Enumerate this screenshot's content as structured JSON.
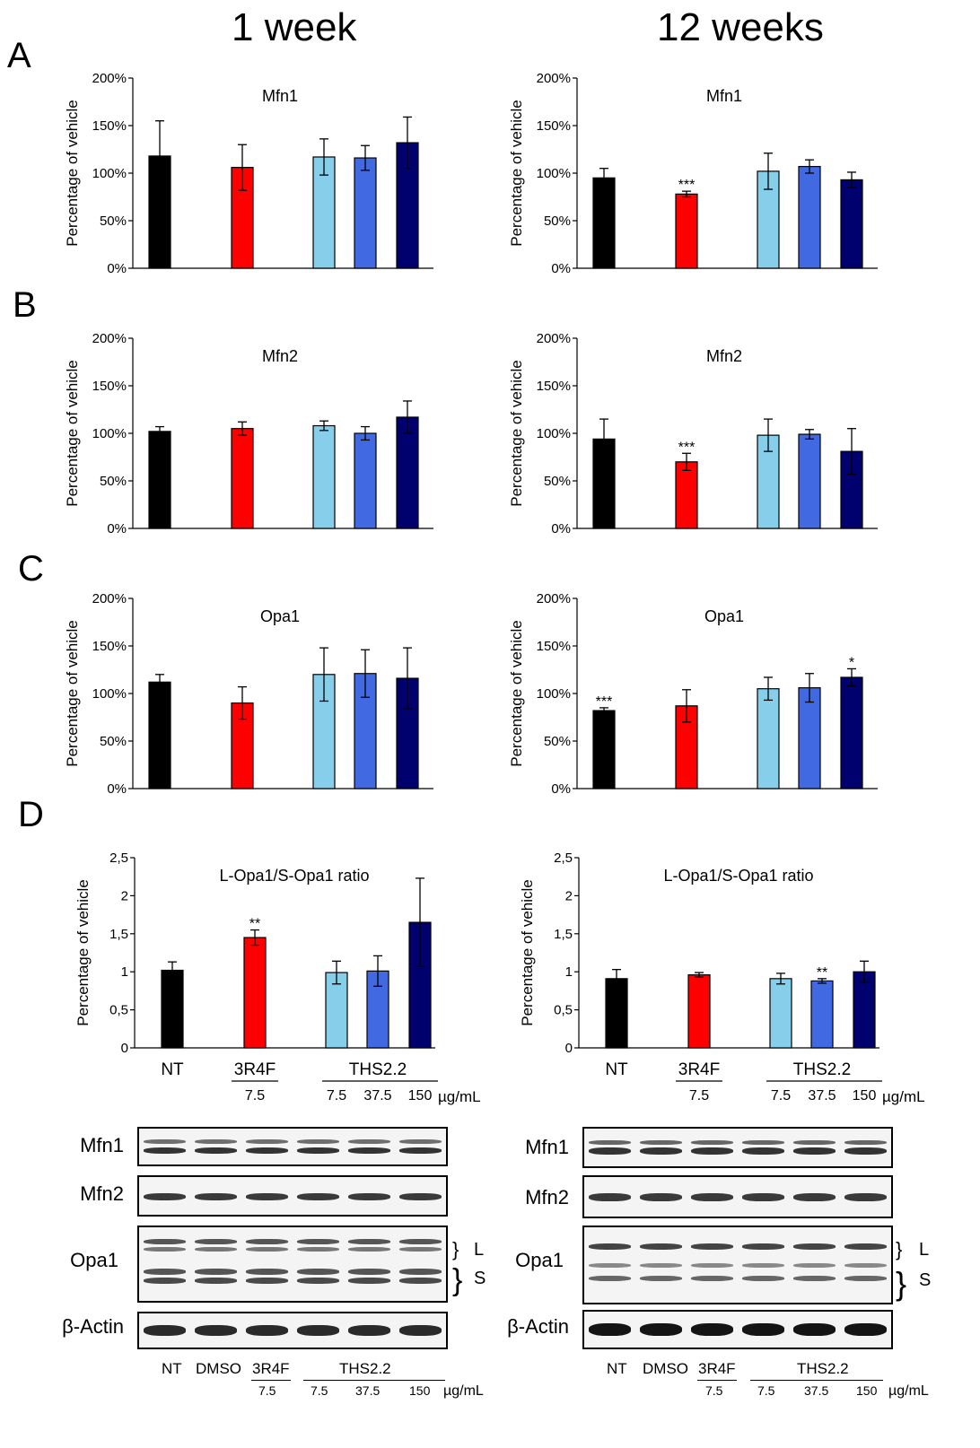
{
  "column_titles": [
    "1 week",
    "12 weeks"
  ],
  "panel_letters": [
    "A",
    "B",
    "C",
    "D"
  ],
  "colors": {
    "NT": "#000000",
    "3R4F": "#ff0000",
    "THS7.5": "#87ceeb",
    "THS37.5": "#4169e1",
    "THS150": "#00006e"
  },
  "x_groups": {
    "nt": "NT",
    "ref": "3R4F",
    "ref_dose": "7.5",
    "ths": "THS2.2",
    "ths_doses": [
      "7.5",
      "37.5",
      "150"
    ],
    "unit": "µg/mL"
  },
  "chart_data": [
    {
      "id": "A1",
      "type": "bar",
      "title": "Mfn1",
      "ylabel": "Percentage of vehicle",
      "ylim": [
        0,
        200
      ],
      "yticks": [
        "0%",
        "50%",
        "100%",
        "150%",
        "200%"
      ],
      "categories": [
        "NT",
        "3R4F 7.5",
        "THS2.2 7.5",
        "THS2.2 37.5",
        "THS2.2 150"
      ],
      "values": [
        118,
        106,
        117,
        116,
        132
      ],
      "errors": [
        37,
        24,
        19,
        13,
        27
      ],
      "annotations": [
        "",
        "",
        "",
        "",
        ""
      ]
    },
    {
      "id": "A2",
      "type": "bar",
      "title": "Mfn1",
      "ylabel": "Percentage of vehicle",
      "ylim": [
        0,
        200
      ],
      "yticks": [
        "0%",
        "50%",
        "100%",
        "150%",
        "200%"
      ],
      "categories": [
        "NT",
        "3R4F 7.5",
        "THS2.2 7.5",
        "THS2.2 37.5",
        "THS2.2 150"
      ],
      "values": [
        95,
        78,
        102,
        107,
        93
      ],
      "errors": [
        10,
        3,
        19,
        7,
        8
      ],
      "annotations": [
        "",
        "***",
        "",
        "",
        ""
      ]
    },
    {
      "id": "B1",
      "type": "bar",
      "title": "Mfn2",
      "ylabel": "Percentage of vehicle",
      "ylim": [
        0,
        200
      ],
      "yticks": [
        "0%",
        "50%",
        "100%",
        "150%",
        "200%"
      ],
      "categories": [
        "NT",
        "3R4F 7.5",
        "THS2.2 7.5",
        "THS2.2 37.5",
        "THS2.2 150"
      ],
      "values": [
        102,
        105,
        108,
        100,
        117
      ],
      "errors": [
        5,
        7,
        5,
        7,
        17
      ],
      "annotations": [
        "",
        "",
        "",
        "",
        ""
      ]
    },
    {
      "id": "B2",
      "type": "bar",
      "title": "Mfn2",
      "ylabel": "Percentage of vehicle",
      "ylim": [
        0,
        200
      ],
      "yticks": [
        "0%",
        "50%",
        "100%",
        "150%",
        "200%"
      ],
      "categories": [
        "NT",
        "3R4F 7.5",
        "THS2.2 7.5",
        "THS2.2 37.5",
        "THS2.2 150"
      ],
      "values": [
        94,
        70,
        98,
        99,
        81
      ],
      "errors": [
        21,
        9,
        17,
        5,
        24
      ],
      "annotations": [
        "",
        "***",
        "",
        "",
        ""
      ]
    },
    {
      "id": "C1",
      "type": "bar",
      "title": "Opa1",
      "ylabel": "Percentage of vehicle",
      "ylim": [
        0,
        200
      ],
      "yticks": [
        "0%",
        "50%",
        "100%",
        "150%",
        "200%"
      ],
      "categories": [
        "NT",
        "3R4F 7.5",
        "THS2.2 7.5",
        "THS2.2 37.5",
        "THS2.2 150"
      ],
      "values": [
        112,
        90,
        120,
        121,
        116
      ],
      "errors": [
        8,
        17,
        28,
        25,
        32
      ],
      "annotations": [
        "",
        "",
        "",
        "",
        ""
      ]
    },
    {
      "id": "C2",
      "type": "bar",
      "title": "Opa1",
      "ylabel": "Percentage of vehicle",
      "ylim": [
        0,
        200
      ],
      "yticks": [
        "0%",
        "50%",
        "100%",
        "150%",
        "200%"
      ],
      "categories": [
        "NT",
        "3R4F 7.5",
        "THS2.2 7.5",
        "THS2.2 37.5",
        "THS2.2 150"
      ],
      "values": [
        82,
        87,
        105,
        106,
        117
      ],
      "errors": [
        3,
        17,
        12,
        15,
        9
      ],
      "annotations": [
        "***",
        "",
        "",
        "",
        "*"
      ]
    },
    {
      "id": "D1",
      "type": "bar",
      "title": "L-Opa1/S-Opa1 ratio",
      "ylabel": "Percentage of vehicle",
      "ylim": [
        0,
        2.5
      ],
      "yticks": [
        "0",
        "0,5",
        "1",
        "1,5",
        "2",
        "2,5"
      ],
      "categories": [
        "NT",
        "3R4F 7.5",
        "THS2.2 7.5",
        "THS2.2 37.5",
        "THS2.2 150"
      ],
      "values": [
        1.02,
        1.45,
        0.99,
        1.01,
        1.65
      ],
      "errors": [
        0.11,
        0.1,
        0.15,
        0.2,
        0.58
      ],
      "annotations": [
        "",
        "**",
        "",
        "",
        ""
      ]
    },
    {
      "id": "D2",
      "type": "bar",
      "title": "L-Opa1/S-Opa1 ratio",
      "ylabel": "Percentage of vehicle",
      "ylim": [
        0,
        2.5
      ],
      "yticks": [
        "0",
        "0,5",
        "1",
        "1,5",
        "2",
        "2,5"
      ],
      "categories": [
        "NT",
        "3R4F 7.5",
        "THS2.2 7.5",
        "THS2.2 37.5",
        "THS2.2 150"
      ],
      "values": [
        0.91,
        0.96,
        0.91,
        0.88,
        1.0
      ],
      "errors": [
        0.12,
        0.03,
        0.07,
        0.03,
        0.14
      ],
      "annotations": [
        "",
        "",
        "",
        "**",
        ""
      ]
    }
  ],
  "blots": {
    "rows": [
      "Mfn1",
      "Mfn2",
      "Opa1",
      "β-Actin"
    ],
    "opa1_forms": [
      "L",
      "S"
    ],
    "lanes": [
      "NT",
      "DMSO",
      "3R4F",
      "THS2.2"
    ],
    "lane_doses": [
      "7.5",
      "7.5",
      "37.5",
      "150"
    ],
    "unit": "µg/mL"
  }
}
